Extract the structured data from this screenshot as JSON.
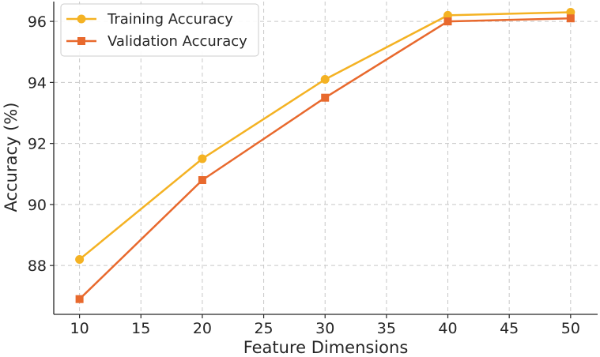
{
  "chart_data": {
    "type": "line",
    "x": [
      10,
      20,
      30,
      40,
      50
    ],
    "xlabel": "Feature Dimensions",
    "ylabel": "Accuracy (%)",
    "xlim": [
      7.9,
      52.2
    ],
    "ylim": [
      86.4,
      96.65
    ],
    "xticks": [
      10,
      15,
      20,
      25,
      30,
      35,
      40,
      45,
      50
    ],
    "yticks": [
      88,
      90,
      92,
      94,
      96
    ],
    "grid": true,
    "legend_position": "top-left",
    "series": [
      {
        "name": "Training Accuracy",
        "values": [
          88.2,
          91.5,
          94.1,
          96.2,
          96.3
        ],
        "color": "#F4B223",
        "marker": "circle"
      },
      {
        "name": "Validation Accuracy",
        "values": [
          86.9,
          90.8,
          93.5,
          96.0,
          96.1
        ],
        "color": "#E8692D",
        "marker": "square"
      }
    ]
  }
}
